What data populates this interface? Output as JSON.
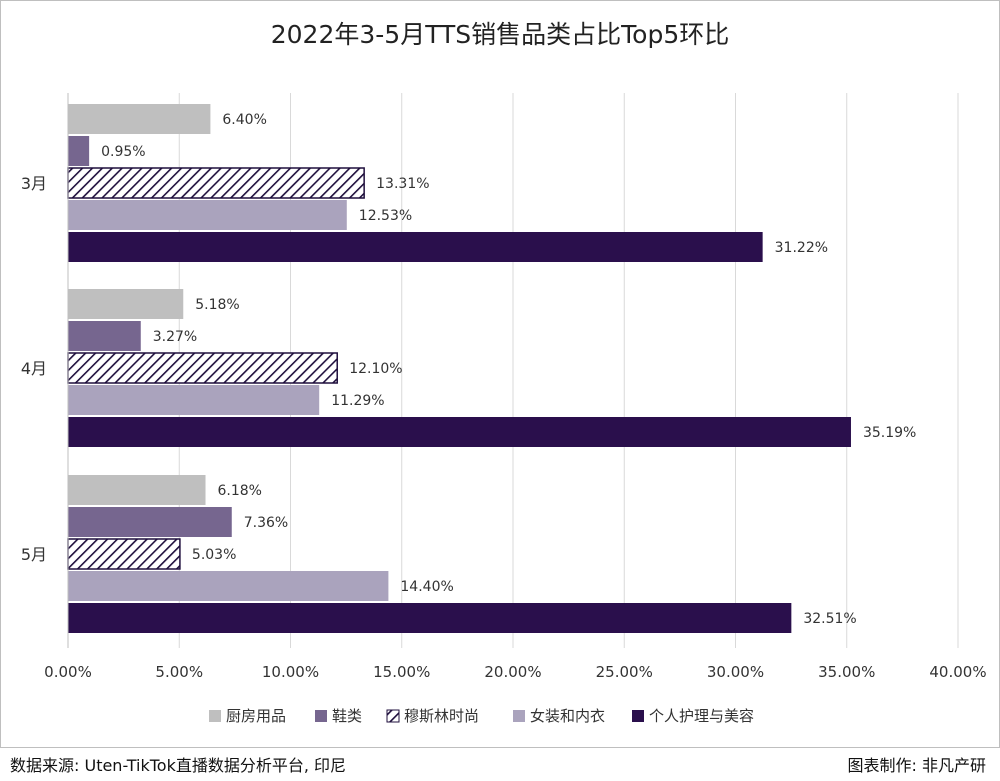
{
  "chart_data": {
    "type": "bar",
    "orientation": "horizontal",
    "title": "2022年3-5月TTS销售品类占比Top5环比",
    "categories": [
      "3月",
      "4月",
      "5月"
    ],
    "series": [
      {
        "name": "厨房用品",
        "values": [
          6.4,
          5.18,
          6.18
        ],
        "labels": [
          "6.40%",
          "5.18%",
          "6.18%"
        ],
        "color": "#bfbfbf",
        "pattern": "solid"
      },
      {
        "name": "鞋类",
        "values": [
          0.95,
          3.27,
          7.36
        ],
        "labels": [
          "0.95%",
          "3.27%",
          "7.36%"
        ],
        "color": "#76668f",
        "pattern": "solid"
      },
      {
        "name": "穆斯林时尚",
        "values": [
          13.31,
          12.1,
          5.03
        ],
        "labels": [
          "13.31%",
          "12.10%",
          "5.03%"
        ],
        "color": "#1f0f3d",
        "pattern": "diagonal-hatch"
      },
      {
        "name": "女装和内衣",
        "values": [
          12.53,
          11.29,
          14.4
        ],
        "labels": [
          "12.53%",
          "11.29%",
          "14.40%"
        ],
        "color": "#aaa3bd",
        "pattern": "solid"
      },
      {
        "name": "个人护理与美容",
        "values": [
          31.22,
          35.19,
          32.51
        ],
        "labels": [
          "31.22%",
          "35.19%",
          "32.51%"
        ],
        "color": "#2a0f4c",
        "pattern": "solid"
      }
    ],
    "xlim": [
      0,
      40
    ],
    "xticks": [
      "0.00%",
      "5.00%",
      "10.00%",
      "15.00%",
      "20.00%",
      "25.00%",
      "30.00%",
      "35.00%",
      "40.00%"
    ],
    "grid": true,
    "legend_position": "bottom"
  },
  "footer": {
    "source": "数据来源: Uten-TikTok直播数据分析平台, 印尼",
    "credit": "图表制作: 非凡产研"
  }
}
